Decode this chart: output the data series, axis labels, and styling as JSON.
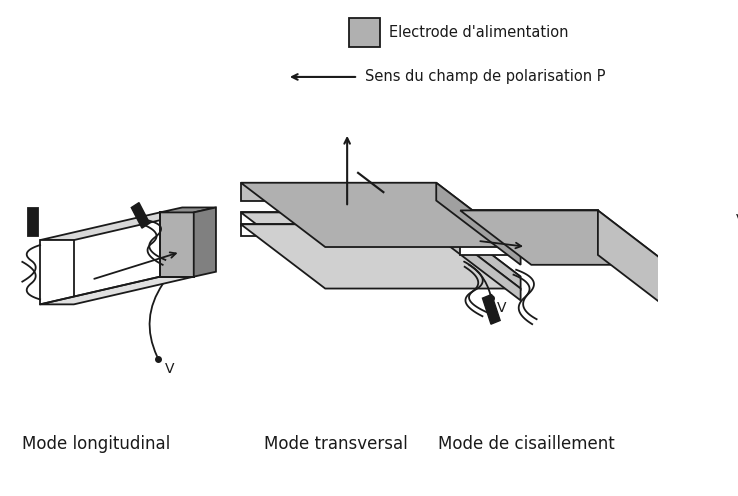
{
  "background_color": "#ffffff",
  "gc": "#b0b0b0",
  "ec": "#1a1a1a",
  "lw": 1.3,
  "legend_electrode_text": "Electrode d'alimentation",
  "legend_polarisation_text": "Sens du champ de polarisation P",
  "label_longitudinal": "Mode longitudinal",
  "label_transversal": "Mode transversal",
  "label_cisaillement": "Mode de cisaillement",
  "label_fontsize": 12,
  "v_fontsize": 10
}
